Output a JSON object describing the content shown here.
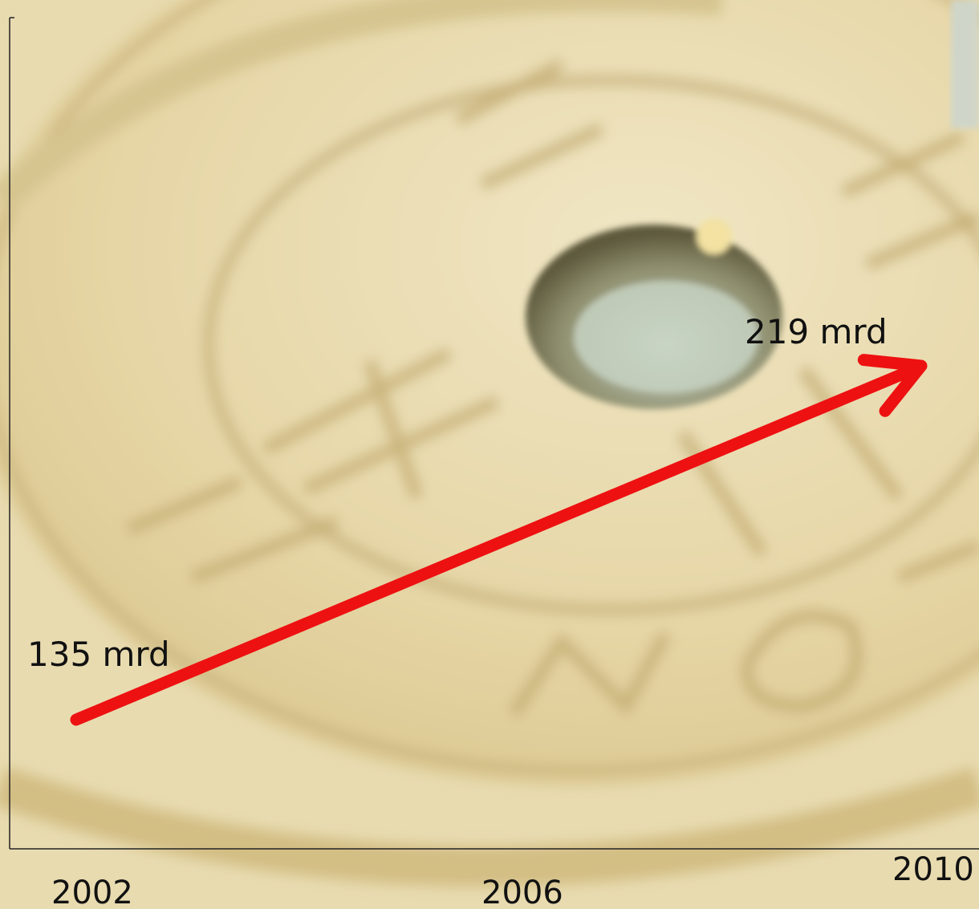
{
  "chart_data": {
    "type": "line",
    "title": "",
    "xlabel": "",
    "ylabel": "",
    "x_ticks": [
      "2002",
      "2006",
      "2010"
    ],
    "points": [
      {
        "x": 2002,
        "y": 135,
        "label": "135 mrd"
      },
      {
        "x": 2010,
        "y": 219,
        "label": "219 mrd"
      }
    ],
    "xlim": [
      2002,
      2010
    ],
    "arrow_color": "#ee1111",
    "grid": false,
    "legend": "none"
  }
}
